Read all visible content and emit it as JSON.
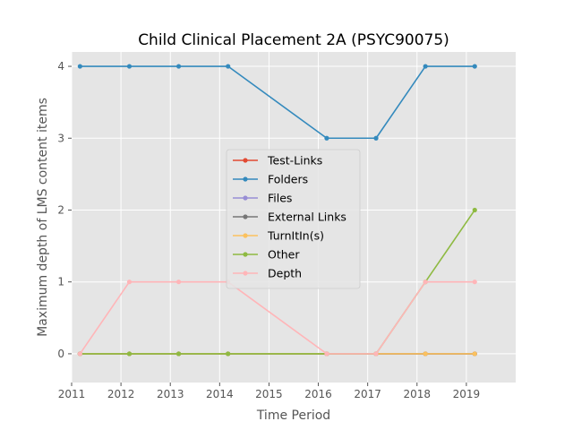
{
  "chart_data": {
    "type": "line",
    "title": "Child Clinical Placement 2A (PSYC90075)",
    "xlabel": "Time Period",
    "ylabel": "Maximum depth of LMS content items",
    "x": [
      2011.17,
      2012.17,
      2013.17,
      2014.17,
      2016.17,
      2017.17,
      2018.17,
      2019.17
    ],
    "xlim": [
      2011,
      2020
    ],
    "ylim": [
      -0.4,
      4.2
    ],
    "xticks": [
      2011,
      2012,
      2013,
      2014,
      2015,
      2016,
      2017,
      2018,
      2019
    ],
    "yticks": [
      0,
      1,
      2,
      3,
      4
    ],
    "xtick_labels": [
      "2011",
      "2012",
      "2013",
      "2014",
      "2015",
      "2016",
      "2017",
      "2018",
      "2019"
    ],
    "ytick_labels": [
      "0",
      "1",
      "2",
      "3",
      "4"
    ],
    "grid": true,
    "legend_position": "center",
    "series": [
      {
        "name": "Test-Links",
        "color": "#e24a33",
        "values": [
          0,
          0,
          0,
          0,
          0,
          0,
          0,
          0
        ]
      },
      {
        "name": "Folders",
        "color": "#348abd",
        "values": [
          4,
          4,
          4,
          4,
          3,
          3,
          4,
          4
        ]
      },
      {
        "name": "Files",
        "color": "#988ed5",
        "values": [
          0,
          0,
          0,
          0,
          0,
          0,
          0,
          0
        ]
      },
      {
        "name": "External Links",
        "color": "#777777",
        "values": [
          0,
          0,
          0,
          0,
          0,
          0,
          0,
          0
        ]
      },
      {
        "name": "TurnItIn(s)",
        "color": "#fbc15e",
        "values": [
          0,
          0,
          0,
          0,
          0,
          0,
          0,
          0
        ]
      },
      {
        "name": "Other",
        "color": "#8eba42",
        "values": [
          0,
          0,
          0,
          0,
          0,
          0,
          1,
          2
        ]
      },
      {
        "name": "Depth",
        "color": "#ffb5b8",
        "values": [
          0,
          1,
          1,
          1,
          0,
          0,
          1,
          1
        ]
      }
    ]
  }
}
